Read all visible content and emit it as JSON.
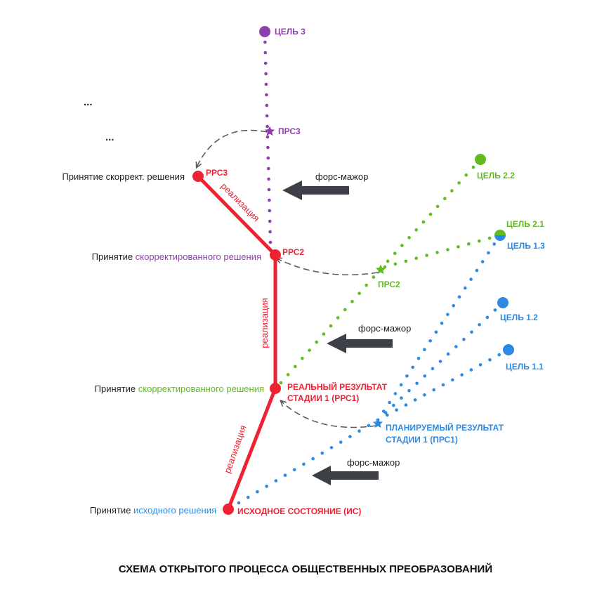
{
  "colors": {
    "red": "#ee2233",
    "purple": "#8e3fae",
    "green": "#5fbb1f",
    "blue": "#2d8ae3",
    "gray": "#555555",
    "arrow": "#3d4147",
    "text": "#222222"
  },
  "caption": "СХЕМА ОТКРЫТОГО ПРОЦЕССА ОБЩЕСТВЕННЫХ ПРЕОБРАЗОВАНИЙ",
  "ellipses": [
    "...",
    "..."
  ],
  "left_labels": {
    "accept_word": "Принятие",
    "l1": "Принятие скоррект. решения",
    "l2": "скорректированного решения",
    "l3": "скорректированного решения",
    "l4": "исходного решения"
  },
  "states": {
    "is": "ИСХОДНОЕ СОСТОЯНИЕ (ИС)",
    "rrs1_line1": "РЕАЛЬНЫЙ РЕЗУЛЬТАТ",
    "rrs1_line2": "СТАДИИ 1 (РРС1)",
    "rrs2": "РРС2",
    "rrs3": "РРС3"
  },
  "realization": [
    "реализация",
    "реализация",
    "реализация"
  ],
  "force_majeure": [
    "форс-мажор",
    "форс-мажор",
    "форс-мажор"
  ],
  "planned": {
    "prs1_line1": "ПЛАНИРУЕМЫЙ РЕЗУЛЬТАТ",
    "prs1_line2": "СТАДИИ 1 (ПРС1)",
    "prs2": "ПРС2",
    "prs3": "ПРС3"
  },
  "goals": {
    "g1_1": "ЦЕЛЬ 1.1",
    "g1_2": "ЦЕЛЬ 1.2",
    "g1_3": "ЦЕЛЬ 1.3",
    "g2_1": "ЦЕЛЬ 2.1",
    "g2_2": "ЦЕЛЬ 2.2",
    "g3": "ЦЕЛЬ 3"
  }
}
